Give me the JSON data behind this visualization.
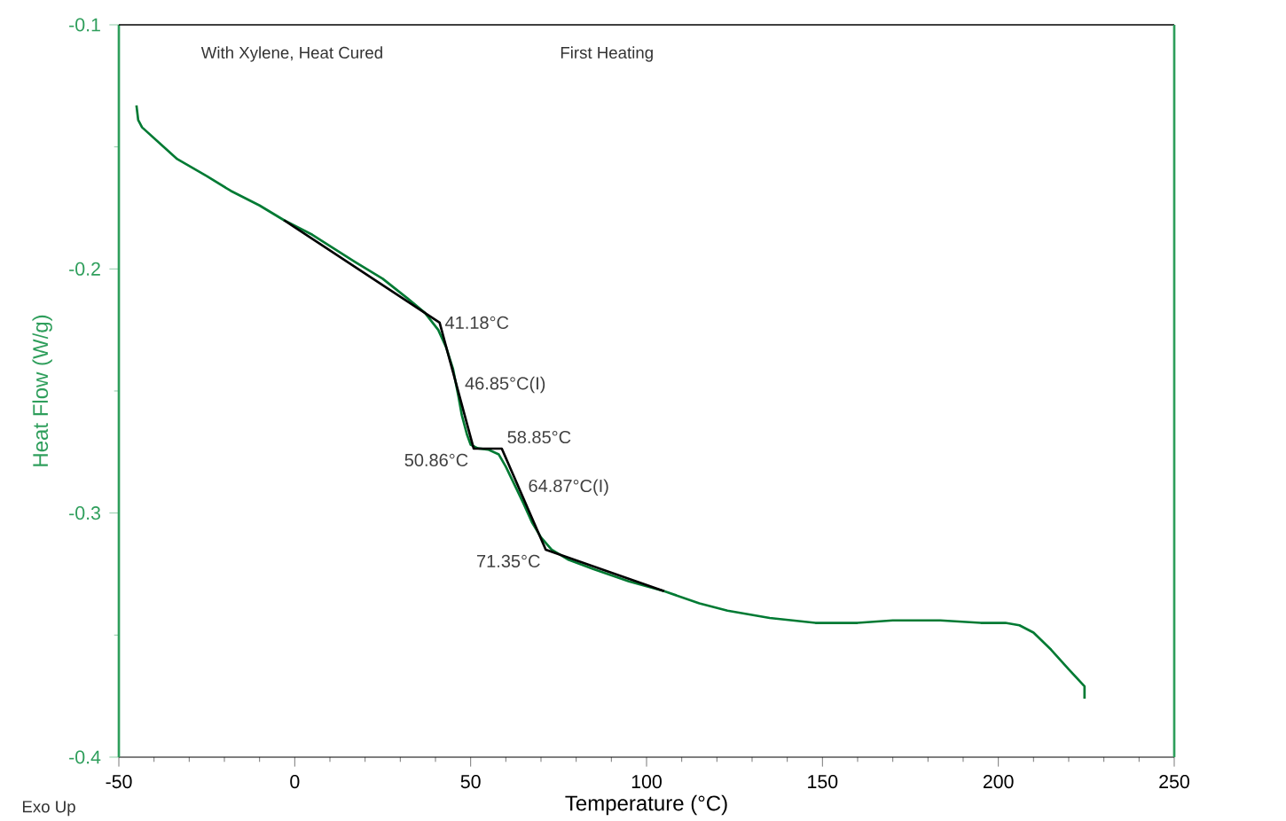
{
  "chart_data": {
    "type": "line",
    "xlabel": "Temperature (°C)",
    "ylabel": "Heat Flow (W/g)",
    "xlim": [
      -50,
      250
    ],
    "ylim": [
      -0.4,
      -0.1
    ],
    "xticks": [
      -50,
      0,
      50,
      100,
      150,
      200,
      250
    ],
    "yticks": [
      -0.4,
      -0.3,
      -0.2,
      -0.1
    ],
    "grid": false,
    "marker": "none",
    "line_style": "solid",
    "series": [
      {
        "color": "#007a33",
        "x": [
          -45,
          -44.5,
          -43.4,
          -38,
          -33.4,
          -25,
          -18.2,
          -10,
          -3.1,
          5,
          17,
          25,
          32,
          37,
          40.8,
          43,
          45,
          46.5,
          47.5,
          49,
          50,
          52,
          55,
          58,
          60,
          62,
          65,
          67.5,
          70,
          73,
          77.6,
          85,
          95,
          105,
          115,
          123,
          135,
          148,
          160,
          170,
          183.5,
          195,
          202,
          206,
          210,
          215,
          220,
          224.5,
          224.5
        ],
        "values": [
          -0.133,
          -0.139,
          -0.142,
          -0.149,
          -0.155,
          -0.162,
          -0.168,
          -0.174,
          -0.18,
          -0.186,
          -0.197,
          -0.204,
          -0.212,
          -0.218,
          -0.225,
          -0.232,
          -0.241,
          -0.252,
          -0.26,
          -0.268,
          -0.272,
          -0.2735,
          -0.274,
          -0.276,
          -0.281,
          -0.287,
          -0.296,
          -0.304,
          -0.31,
          -0.315,
          -0.319,
          -0.323,
          -0.328,
          -0.332,
          -0.337,
          -0.34,
          -0.343,
          -0.345,
          -0.345,
          -0.344,
          -0.344,
          -0.345,
          -0.345,
          -0.346,
          -0.349,
          -0.356,
          -0.364,
          -0.371,
          -0.376
        ]
      },
      {
        "color": "#000000",
        "x": [
          -3.1,
          41.18,
          50.86,
          58.85,
          71.35,
          105
        ],
        "values": [
          -0.18,
          -0.222,
          -0.2736,
          -0.2736,
          -0.315,
          -0.332
        ]
      }
    ],
    "annotations": [
      "With Xylene, Heat Cured",
      "First Heating",
      "Exo Up",
      {
        "text": "41.18°C",
        "x": 41.18,
        "y": -0.222
      },
      {
        "text": "46.85°C(I)",
        "x": 46.85,
        "y": -0.253
      },
      {
        "text": "50.86°C",
        "x": 50.86,
        "y": -0.2736
      },
      {
        "text": "58.85°C",
        "x": 58.85,
        "y": -0.2736
      },
      {
        "text": "64.87°C(I)",
        "x": 64.87,
        "y": -0.295
      },
      {
        "text": "71.35°C",
        "x": 71.35,
        "y": -0.315
      }
    ]
  }
}
